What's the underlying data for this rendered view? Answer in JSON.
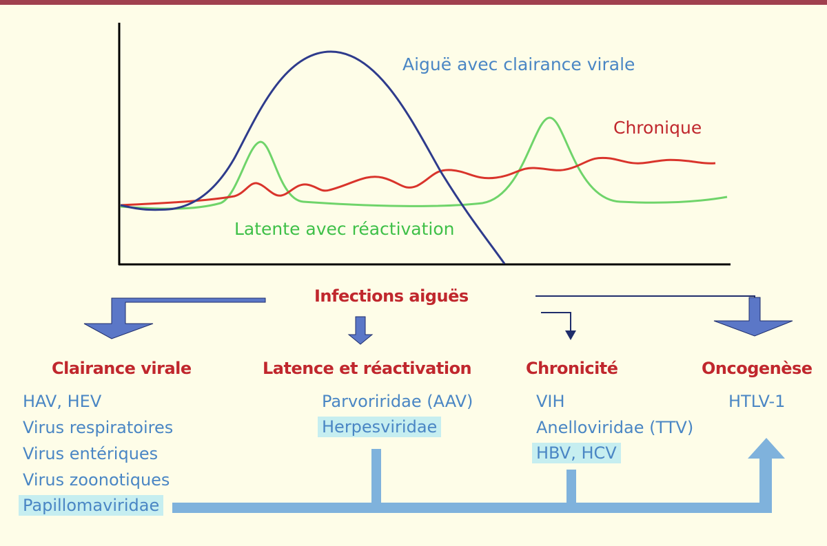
{
  "colors": {
    "background": "#fefde8",
    "top_bar": "#a0404e",
    "acute_curve": "#2e3b8c",
    "chronic_curve": "#d9342b",
    "latent_curve": "#6fd46a",
    "heading_red": "#c0272d",
    "item_blue": "#4a86c4",
    "arrow_blue": "#5b77c7",
    "connector_light_blue": "#7fb2dc",
    "highlight": "#c6eef0"
  },
  "curves": {
    "acute_label": "Aiguë avec clairance virale",
    "chronic_label": "Chronique",
    "latent_label": "Latente avec réactivation"
  },
  "center_heading": "Infections aiguës",
  "columns": {
    "clearance": {
      "heading": "Clairance virale",
      "items": [
        "HAV, HEV",
        "Virus respiratoires",
        "Virus entériques",
        "Virus zoonotiques"
      ],
      "highlighted": "Papillomaviridae"
    },
    "latency": {
      "heading": "Latence et réactivation",
      "items": [
        "Parvoriridae (AAV)"
      ],
      "highlighted": "Herpesviridae"
    },
    "chronicity": {
      "heading": "Chronicité",
      "items": [
        "VIH",
        "Anelloviridae (TTV)"
      ],
      "highlighted": "HBV, HCV"
    },
    "oncogenesis": {
      "heading": "Oncogenèse",
      "items": [
        "HTLV-1"
      ]
    }
  }
}
